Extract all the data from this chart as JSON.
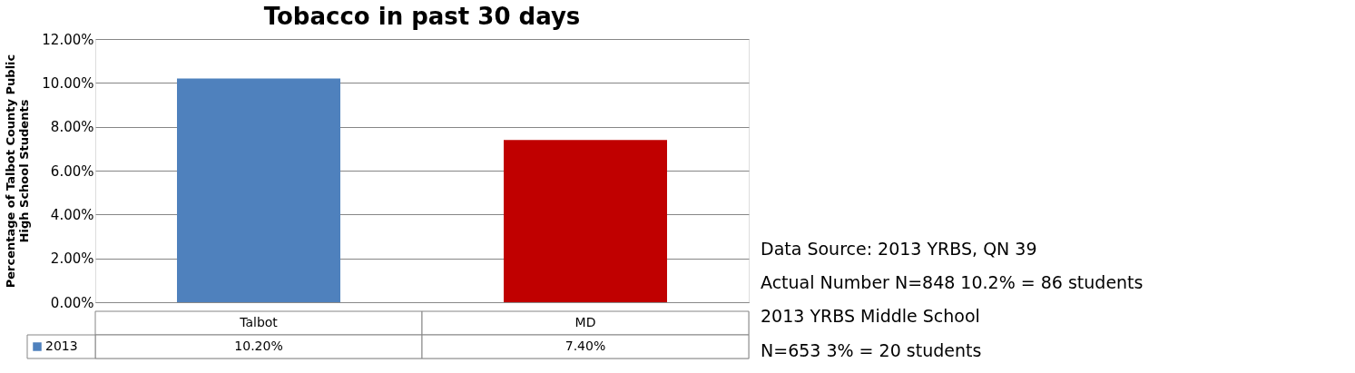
{
  "chart_data": {
    "type": "bar",
    "title": "Tobacco in past 30 days",
    "ylabel": [
      "Percentage of Talbot County Public",
      "High School Students"
    ],
    "categories": [
      "Talbot",
      "MD"
    ],
    "series": [
      {
        "name": "2013",
        "color": "#4f81bd",
        "colors": [
          "#4f81bd",
          "#c00000"
        ],
        "values": [
          10.2,
          7.4
        ]
      }
    ],
    "value_labels": [
      "10.20%",
      "7.40%"
    ],
    "ylim": [
      0,
      12
    ],
    "yticks": [
      {
        "value": 0,
        "label": "0.00%"
      },
      {
        "value": 2,
        "label": "2.00%"
      },
      {
        "value": 4,
        "label": "4.00%"
      },
      {
        "value": 6,
        "label": "6.00%"
      },
      {
        "value": 8,
        "label": "8.00%"
      },
      {
        "value": 10,
        "label": "10.00%"
      },
      {
        "value": 12,
        "label": "12.00%"
      }
    ],
    "grid": "y",
    "annotations": [
      "Data Source:  2013 YRBS, QN 39",
      "Actual Number N=848 10.2% = 86 students",
      "2013 YRBS Middle School",
      "N=653  3% = 20 students"
    ]
  }
}
